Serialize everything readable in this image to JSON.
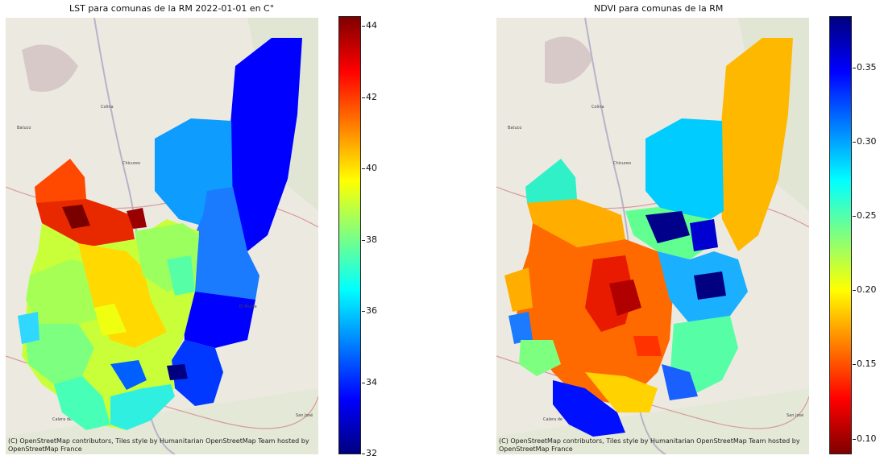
{
  "left_panel": {
    "title": "LST para comunas de la RM 2022-01-01 en C°",
    "colorbar": {
      "colormap": "jet",
      "ticks": [
        "32",
        "34",
        "36",
        "38",
        "40",
        "42",
        "44"
      ],
      "range": [
        32,
        44.3
      ]
    }
  },
  "right_panel": {
    "title": "NDVI para comunas de la RM",
    "colorbar": {
      "colormap": "jet_r",
      "ticks": [
        "0.10",
        "0.15",
        "0.20",
        "0.25",
        "0.30",
        "0.35"
      ],
      "range": [
        0.09,
        0.385
      ]
    }
  },
  "attribution": {
    "line1": "(C) OpenStreetMap contributors, Tiles style by Humanitarian OpenStreetMap Team hosted by",
    "line2": "OpenStreetMap France"
  },
  "basemap_labels": [
    "Colina",
    "Batuco",
    "Chicureo",
    "Calera de Tango",
    "San José de Maipo",
    "El Monte"
  ],
  "colors": {
    "jet": [
      "#00007f",
      "#0000ff",
      "#007fff",
      "#00ffff",
      "#7fff7f",
      "#ffff00",
      "#ff7f00",
      "#ff0000",
      "#7f0000"
    ],
    "basemap": "#ece9e1",
    "park": "#cfe3c4",
    "road": "#d89a9a"
  }
}
